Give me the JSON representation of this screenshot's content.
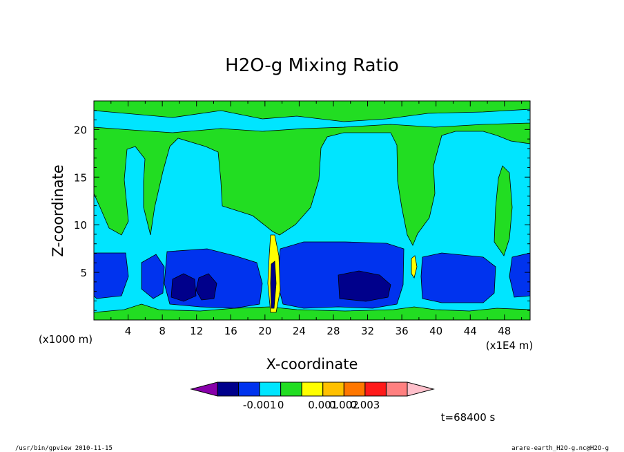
{
  "chart_data": {
    "type": "heatmap",
    "title": "H2O-g Mixing Ratio",
    "xlabel": "X-coordinate",
    "ylabel": "Z-coordinate",
    "x_units": "(x1000 m)",
    "x_scale_note": "(x1E4 m)",
    "xlim": [
      0,
      51
    ],
    "ylim": [
      0,
      23
    ],
    "x_ticks": [
      "4",
      "8",
      "12",
      "16",
      "20",
      "24",
      "28",
      "32",
      "36",
      "40",
      "44",
      "48"
    ],
    "y_ticks": [
      "5",
      "10",
      "15",
      "20"
    ],
    "colorbar": {
      "colors": [
        "#8800aa",
        "#00008b",
        "#0033ee",
        "#00e5ff",
        "#22dd22",
        "#ffff00",
        "#ffc000",
        "#ff7700",
        "#ff1a1a",
        "#ff8080",
        "#ffc0cb"
      ],
      "labels": [
        "-0.001",
        "0",
        "0.001",
        "0.002",
        "0.003"
      ]
    },
    "time_label": "t=68400 s"
  },
  "footer": {
    "left": "/usr/bin/gpview   2010-11-15",
    "right": "arare-earth_H2O-g.nc@H2O-g"
  }
}
